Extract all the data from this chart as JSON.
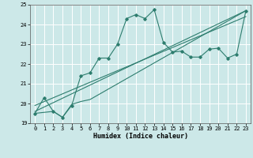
{
  "xlabel": "Humidex (Indice chaleur)",
  "bg_color": "#cce8e8",
  "line_color": "#2d7d6e",
  "grid_color": "#ffffff",
  "grid_minor_color": "#ddf0f0",
  "xlim": [
    -0.5,
    23.5
  ],
  "ylim": [
    19,
    25
  ],
  "yticks": [
    19,
    20,
    21,
    22,
    23,
    24,
    25
  ],
  "xticks": [
    0,
    1,
    2,
    3,
    4,
    5,
    6,
    7,
    8,
    9,
    10,
    11,
    12,
    13,
    14,
    15,
    16,
    17,
    18,
    19,
    20,
    21,
    22,
    23
  ],
  "series1_x": [
    0,
    1,
    2,
    3,
    4,
    5,
    6,
    7,
    8,
    9,
    10,
    11,
    12,
    13,
    14,
    15,
    16,
    17,
    18,
    19,
    20,
    21,
    22,
    23
  ],
  "series1_y": [
    19.5,
    20.3,
    19.6,
    19.3,
    19.9,
    21.4,
    21.55,
    22.3,
    22.3,
    23.0,
    24.3,
    24.5,
    24.3,
    24.75,
    23.1,
    22.6,
    22.65,
    22.35,
    22.35,
    22.75,
    22.8,
    22.3,
    22.5,
    24.7
  ],
  "series2_x": [
    0,
    2,
    3,
    4,
    5,
    6,
    23
  ],
  "series2_y": [
    19.5,
    19.6,
    19.3,
    19.95,
    20.1,
    20.2,
    24.7
  ],
  "series3_x": [
    0,
    23
  ],
  "series3_y": [
    19.6,
    24.7
  ],
  "series4_x": [
    0,
    23
  ],
  "series4_y": [
    19.9,
    24.4
  ]
}
